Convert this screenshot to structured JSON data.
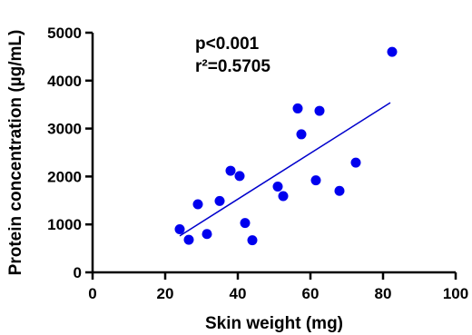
{
  "chart_data": {
    "type": "scatter",
    "xlabel": "Skin weight (mg)",
    "ylabel": "Protein concentration (µg/mL)",
    "xlim": [
      0,
      100
    ],
    "ylim": [
      0,
      5000
    ],
    "x_ticks": [
      0,
      20,
      40,
      60,
      80,
      100
    ],
    "y_ticks": [
      0,
      1000,
      2000,
      3000,
      4000,
      5000
    ],
    "grid": false,
    "annotations": {
      "p_value": "p<0.001",
      "r2": "r²=0.5705"
    },
    "series": [
      {
        "color": "#0000ee",
        "points": [
          {
            "x": 24,
            "y": 900
          },
          {
            "x": 26.5,
            "y": 680
          },
          {
            "x": 29,
            "y": 1420
          },
          {
            "x": 31.5,
            "y": 800
          },
          {
            "x": 35,
            "y": 1490
          },
          {
            "x": 38,
            "y": 2120
          },
          {
            "x": 40.5,
            "y": 2010
          },
          {
            "x": 42,
            "y": 1030
          },
          {
            "x": 44,
            "y": 670
          },
          {
            "x": 51,
            "y": 1790
          },
          {
            "x": 52.5,
            "y": 1590
          },
          {
            "x": 56.5,
            "y": 3420
          },
          {
            "x": 57.5,
            "y": 2880
          },
          {
            "x": 61.5,
            "y": 1920
          },
          {
            "x": 62.5,
            "y": 3370
          },
          {
            "x": 68,
            "y": 1700
          },
          {
            "x": 72.5,
            "y": 2290
          },
          {
            "x": 82.5,
            "y": 4600
          }
        ]
      }
    ],
    "regression_line": {
      "color": "#0000cc",
      "x": [
        24,
        82
      ],
      "y": [
        760,
        3540
      ]
    }
  }
}
